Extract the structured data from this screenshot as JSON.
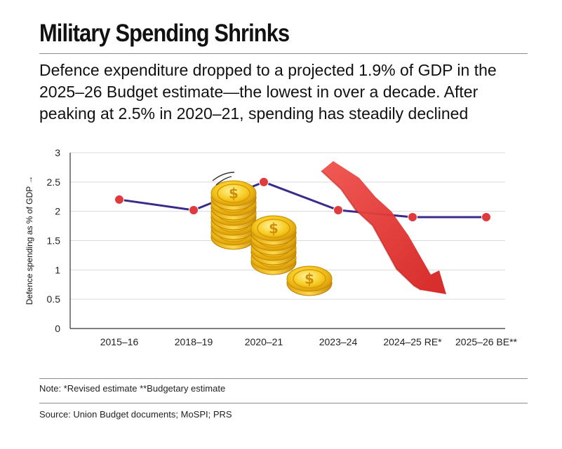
{
  "header": {
    "title": "Military Spending Shrinks",
    "subtitle": "Defence expenditure dropped to a projected 1.9% of GDP in the 2025–26 Budget estimate—the lowest in over a decade. After peaking at 2.5% in 2020–21, spending has steadily declined"
  },
  "chart_data": {
    "type": "line",
    "title": "Military Spending Shrinks",
    "xlabel": "",
    "ylabel": "Defence spending as % of GDP →",
    "categories": [
      "2015–16",
      "2018–19",
      "2020–21",
      "2023–24",
      "2024–25 RE*",
      "2025–26 BE**"
    ],
    "series": [
      {
        "name": "Defence spending as % of GDP",
        "values": [
          2.2,
          2.02,
          2.5,
          2.02,
          1.9,
          1.9
        ]
      }
    ],
    "yticks": [
      "0",
      "0.5",
      "1",
      "1.5",
      "2",
      "2.5",
      "3"
    ],
    "ylim": [
      0,
      3
    ],
    "grid": true,
    "colors": {
      "line": "#3b2a8a",
      "marker": "#e03a3e",
      "grid": "#d9d9d9",
      "arrow": "#e8312f",
      "coin": "#f5c518"
    }
  },
  "footer": {
    "note": "Note: *Revised estimate **Budgetary estimate",
    "source": "Source: Union Budget documents; MoSPI; PRS"
  }
}
